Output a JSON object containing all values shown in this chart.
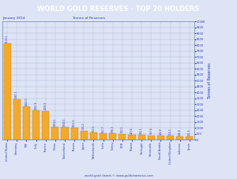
{
  "title": "WORLD GOLD RESERVES - TOP 20 HOLDERS",
  "subtitle_left": "January 2014",
  "subtitle_center": "Tonnes of Reserves",
  "ylabel": "Tonnes of Reserves",
  "footer": "world gold charts © www.goldchartsrus.com",
  "categories": [
    "United States",
    "Germany",
    "IMF",
    "Italy",
    "France",
    "China",
    "Switzerland",
    "Russia",
    "Japan",
    "Netherlands",
    "India",
    "Turkey",
    "ECB",
    "Taiwan",
    "Portugal",
    "Venezuela",
    "Saudi Arabia",
    "United Kingdom",
    "Lebanon",
    "Spain"
  ],
  "values": [
    8133.5,
    3387.1,
    2814.0,
    2451.8,
    2435.4,
    1054.1,
    1040.1,
    1015.5,
    765.2,
    612.5,
    557.7,
    506.3,
    502.1,
    423.6,
    382.5,
    367.6,
    322.9,
    310.3,
    286.8,
    281.6
  ],
  "bar_color": "#F2AA2E",
  "bar_edge_color": "#C88000",
  "bg_color": "#DDE4F5",
  "plot_bg_color": "#DDE4F5",
  "title_bg_color": "#4444CC",
  "title_text_color": "#FFFFFF",
  "axis_text_color": "#2233BB",
  "grid_color": "#B0BBDD",
  "border_color": "#8899BB",
  "ylim": [
    0,
    10000
  ],
  "ytick_step": 500
}
